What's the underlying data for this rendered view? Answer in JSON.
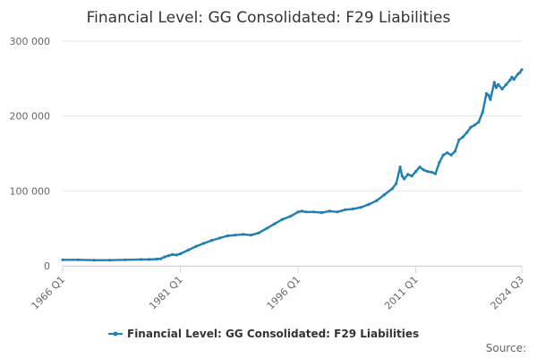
{
  "chart_data": {
    "type": "line",
    "title": "Financial Level: GG Consolidated: F29 Liabilities",
    "source_label": "Source:",
    "color": "#1f7fb4",
    "ylim": [
      0,
      300000
    ],
    "yticks": [
      {
        "value": 0,
        "label": "0"
      },
      {
        "value": 100000,
        "label": "100 000"
      },
      {
        "value": 200000,
        "label": "200 000"
      },
      {
        "value": 300000,
        "label": "300 000"
      }
    ],
    "xlim": [
      1966.0,
      2024.5
    ],
    "xticks": [
      {
        "value": 1966.0,
        "label": "1966 Q1"
      },
      {
        "value": 1981.0,
        "label": "1981 Q1"
      },
      {
        "value": 1996.0,
        "label": "1996 Q1"
      },
      {
        "value": 2011.0,
        "label": "2011 Q1"
      },
      {
        "value": 2024.5,
        "label": "2024 Q3"
      }
    ],
    "legend_position": "bottom",
    "series": [
      {
        "name": "Financial Level: GG Consolidated: F29 Liabilities",
        "x": [
          1966.0,
          1968.0,
          1970.0,
          1972.0,
          1974.0,
          1976.0,
          1977.0,
          1978.0,
          1978.5,
          1979.0,
          1979.5,
          1980.0,
          1980.5,
          1981.0,
          1982.0,
          1983.0,
          1984.0,
          1985.0,
          1986.0,
          1987.0,
          1988.0,
          1989.0,
          1990.0,
          1991.0,
          1992.0,
          1993.0,
          1994.0,
          1995.0,
          1996.0,
          1996.5,
          1997.0,
          1998.0,
          1999.0,
          2000.0,
          2001.0,
          2002.0,
          2003.0,
          2004.0,
          2005.0,
          2006.0,
          2007.0,
          2008.0,
          2008.5,
          2009.0,
          2009.25,
          2009.5,
          2010.0,
          2010.5,
          2011.0,
          2011.5,
          2012.0,
          2012.5,
          2013.0,
          2013.5,
          2014.0,
          2014.5,
          2015.0,
          2015.5,
          2016.0,
          2016.5,
          2017.0,
          2017.5,
          2018.0,
          2018.5,
          2019.0,
          2019.5,
          2020.0,
          2020.25,
          2020.5,
          2021.0,
          2021.25,
          2021.5,
          2022.0,
          2022.5,
          2023.0,
          2023.25,
          2023.5,
          2024.0,
          2024.25,
          2024.5
        ],
        "values": [
          8000,
          8000,
          7500,
          7500,
          8000,
          8500,
          8500,
          9000,
          9500,
          12000,
          13500,
          15000,
          14500,
          16000,
          21000,
          26000,
          30000,
          34000,
          37000,
          40000,
          41000,
          42000,
          41000,
          44000,
          50000,
          56000,
          62000,
          66000,
          72000,
          73000,
          72000,
          72000,
          71000,
          73000,
          72000,
          75000,
          76000,
          78000,
          82000,
          87000,
          95000,
          103000,
          110000,
          132000,
          120000,
          116000,
          122000,
          120000,
          126000,
          132000,
          128000,
          126000,
          125000,
          123000,
          138000,
          148000,
          151000,
          148000,
          153000,
          168000,
          172000,
          178000,
          185000,
          188000,
          192000,
          205000,
          230000,
          228000,
          222000,
          245000,
          238000,
          242000,
          236000,
          242000,
          248000,
          252000,
          249000,
          256000,
          258000,
          262000
        ]
      }
    ]
  }
}
